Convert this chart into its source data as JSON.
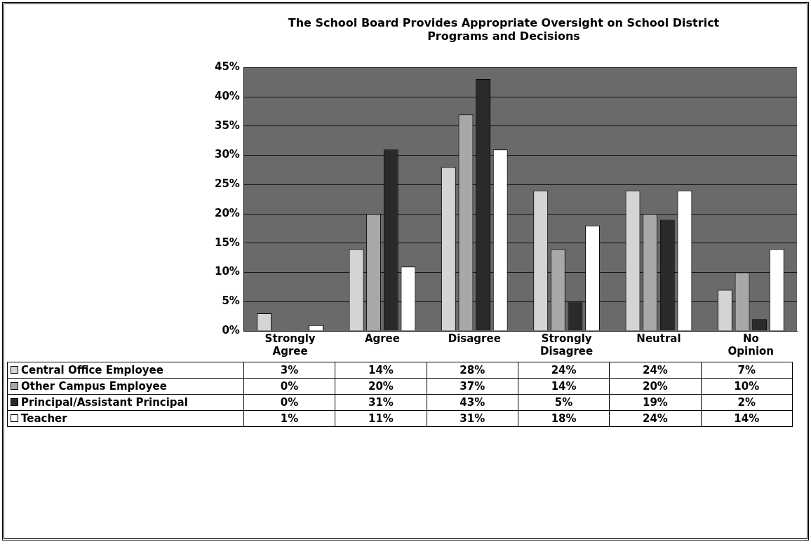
{
  "chart_data": {
    "type": "bar",
    "title": "The School Board Provides Appropriate Oversight on School District Programs and Decisions",
    "categories": [
      "Strongly Agree",
      "Agree",
      "Disagree",
      "Strongly Disagree",
      "Neutral",
      "No Opinion"
    ],
    "series": [
      {
        "name": "Central Office Employee",
        "color": "#d4d4d4",
        "values": [
          3,
          14,
          28,
          24,
          24,
          7
        ],
        "value_labels": [
          "3%",
          "14%",
          "28%",
          "24%",
          "24%",
          "7%"
        ]
      },
      {
        "name": "Other Campus Employee",
        "color": "#a8a8a8",
        "values": [
          0,
          20,
          37,
          14,
          20,
          10
        ],
        "value_labels": [
          "0%",
          "20%",
          "37%",
          "14%",
          "20%",
          "10%"
        ]
      },
      {
        "name": "Principal/Assistant Principal",
        "color": "#2a2a2a",
        "values": [
          0,
          31,
          43,
          5,
          19,
          2
        ],
        "value_labels": [
          "0%",
          "31%",
          "43%",
          "5%",
          "19%",
          "2%"
        ]
      },
      {
        "name": "Teacher",
        "color": "#ffffff",
        "values": [
          1,
          11,
          31,
          18,
          24,
          14
        ],
        "value_labels": [
          "1%",
          "11%",
          "31%",
          "18%",
          "24%",
          "14%"
        ]
      }
    ],
    "ylim": [
      0,
      45
    ],
    "yticks": [
      {
        "value": 0,
        "label": "0%"
      },
      {
        "value": 5,
        "label": "5%"
      },
      {
        "value": 10,
        "label": "10%"
      },
      {
        "value": 15,
        "label": "15%"
      },
      {
        "value": 20,
        "label": "20%"
      },
      {
        "value": 25,
        "label": "25%"
      },
      {
        "value": 30,
        "label": "30%"
      },
      {
        "value": 35,
        "label": "35%"
      },
      {
        "value": 40,
        "label": "40%"
      },
      {
        "value": 45,
        "label": "45%"
      }
    ],
    "grid": "y",
    "legend": "bottom"
  }
}
